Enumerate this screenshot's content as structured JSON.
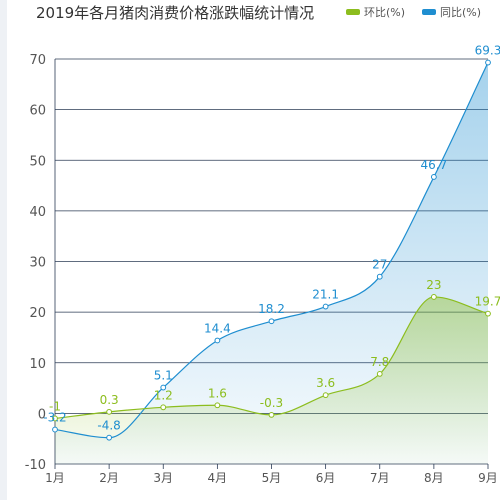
{
  "title": "2019年各月猪肉消费价格涨跌幅统计情况",
  "colors": {
    "hb": "#8cbd1e",
    "tb": "#1f8ed0",
    "grid": "#2b3b55",
    "axisText": "#555555"
  },
  "chart_data": {
    "type": "line",
    "categories": [
      "1月",
      "2月",
      "3月",
      "4月",
      "5月",
      "6月",
      "7月",
      "8月",
      "9月"
    ],
    "ylim": [
      -10,
      70
    ],
    "yticks": [
      -10,
      0,
      10,
      20,
      30,
      40,
      50,
      60,
      70
    ],
    "grid": true,
    "legend": "top-right",
    "series": [
      {
        "name": "环比(%)",
        "key": "hb",
        "values": [
          -1,
          0.3,
          1.2,
          1.6,
          -0.3,
          3.6,
          7.8,
          23,
          19.7
        ],
        "labels": [
          "-1",
          "0.3",
          "1.2",
          "1.6",
          "-0.3",
          "3.6",
          "7.8",
          "23",
          "19.7"
        ]
      },
      {
        "name": "同比(%)",
        "key": "tb",
        "values": [
          -3.2,
          -4.8,
          5.1,
          14.4,
          18.2,
          21.1,
          27,
          46.7,
          69.3
        ],
        "labels": [
          "-3.2",
          "-4.8",
          "5.1",
          "14.4",
          "18.2",
          "21.1",
          "27",
          "46.7",
          "69.3"
        ]
      }
    ]
  }
}
